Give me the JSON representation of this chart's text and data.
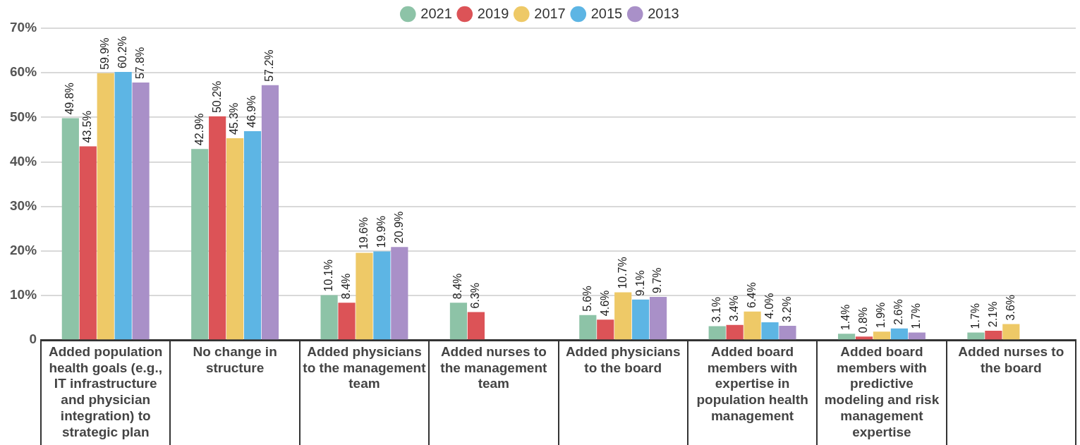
{
  "chart_data": {
    "type": "bar",
    "categories": [
      "Added population health goals (e.g., IT infrastructure and physician integration) to strategic plan",
      "No change in structure",
      "Added physicians to the management team",
      "Added nurses to the management team",
      "Added physicians to the board",
      "Added board members with expertise in population health management",
      "Added board members with predictive modeling and risk management expertise",
      "Added nurses to the board"
    ],
    "series": [
      {
        "name": "2021",
        "color": "#8dc3a7",
        "values": [
          49.8,
          42.9,
          10.1,
          8.4,
          5.6,
          3.1,
          1.4,
          1.7
        ],
        "value_labels": [
          "49.8%",
          "42.9%",
          "10.1%",
          "8.4%",
          "5.6%",
          "3.1%",
          "1.4%",
          "1.7%"
        ]
      },
      {
        "name": "2019",
        "color": "#dc5357",
        "values": [
          43.5,
          50.2,
          8.4,
          6.3,
          4.6,
          3.4,
          0.8,
          2.1
        ],
        "value_labels": [
          "43.5%",
          "50.2%",
          "8.4%",
          "6.3%",
          "4.6%",
          "3.4%",
          "0.8%",
          "2.1%"
        ]
      },
      {
        "name": "2017",
        "color": "#eec967",
        "values": [
          59.9,
          45.3,
          19.6,
          null,
          10.7,
          6.4,
          1.9,
          3.6
        ],
        "value_labels": [
          "59.9%",
          "45.3%",
          "19.6%",
          null,
          "10.7%",
          "6.4%",
          "1.9%",
          "3.6%"
        ]
      },
      {
        "name": "2015",
        "color": "#5db5e4",
        "values": [
          60.2,
          46.9,
          19.9,
          null,
          9.1,
          4.0,
          2.6,
          null
        ],
        "value_labels": [
          "60.2%",
          "46.9%",
          "19.9%",
          null,
          "9.1%",
          "4.0%",
          "2.6%",
          null
        ]
      },
      {
        "name": "2013",
        "color": "#a990c8",
        "values": [
          57.8,
          57.2,
          20.9,
          null,
          9.7,
          3.2,
          1.7,
          null
        ],
        "value_labels": [
          "57.8%",
          "57.2%",
          "20.9%",
          null,
          "9.7%",
          "3.2%",
          "1.7%",
          null
        ]
      }
    ],
    "ylim": [
      0,
      70
    ],
    "yticks": [
      {
        "value": 0,
        "label": "0"
      },
      {
        "value": 10,
        "label": "10%"
      },
      {
        "value": 20,
        "label": "20%"
      },
      {
        "value": 30,
        "label": "30%"
      },
      {
        "value": 40,
        "label": "40%"
      },
      {
        "value": 50,
        "label": "50%"
      },
      {
        "value": 60,
        "label": "60%"
      },
      {
        "value": 70,
        "label": "70%"
      }
    ],
    "grid": "y",
    "legend": "top"
  }
}
